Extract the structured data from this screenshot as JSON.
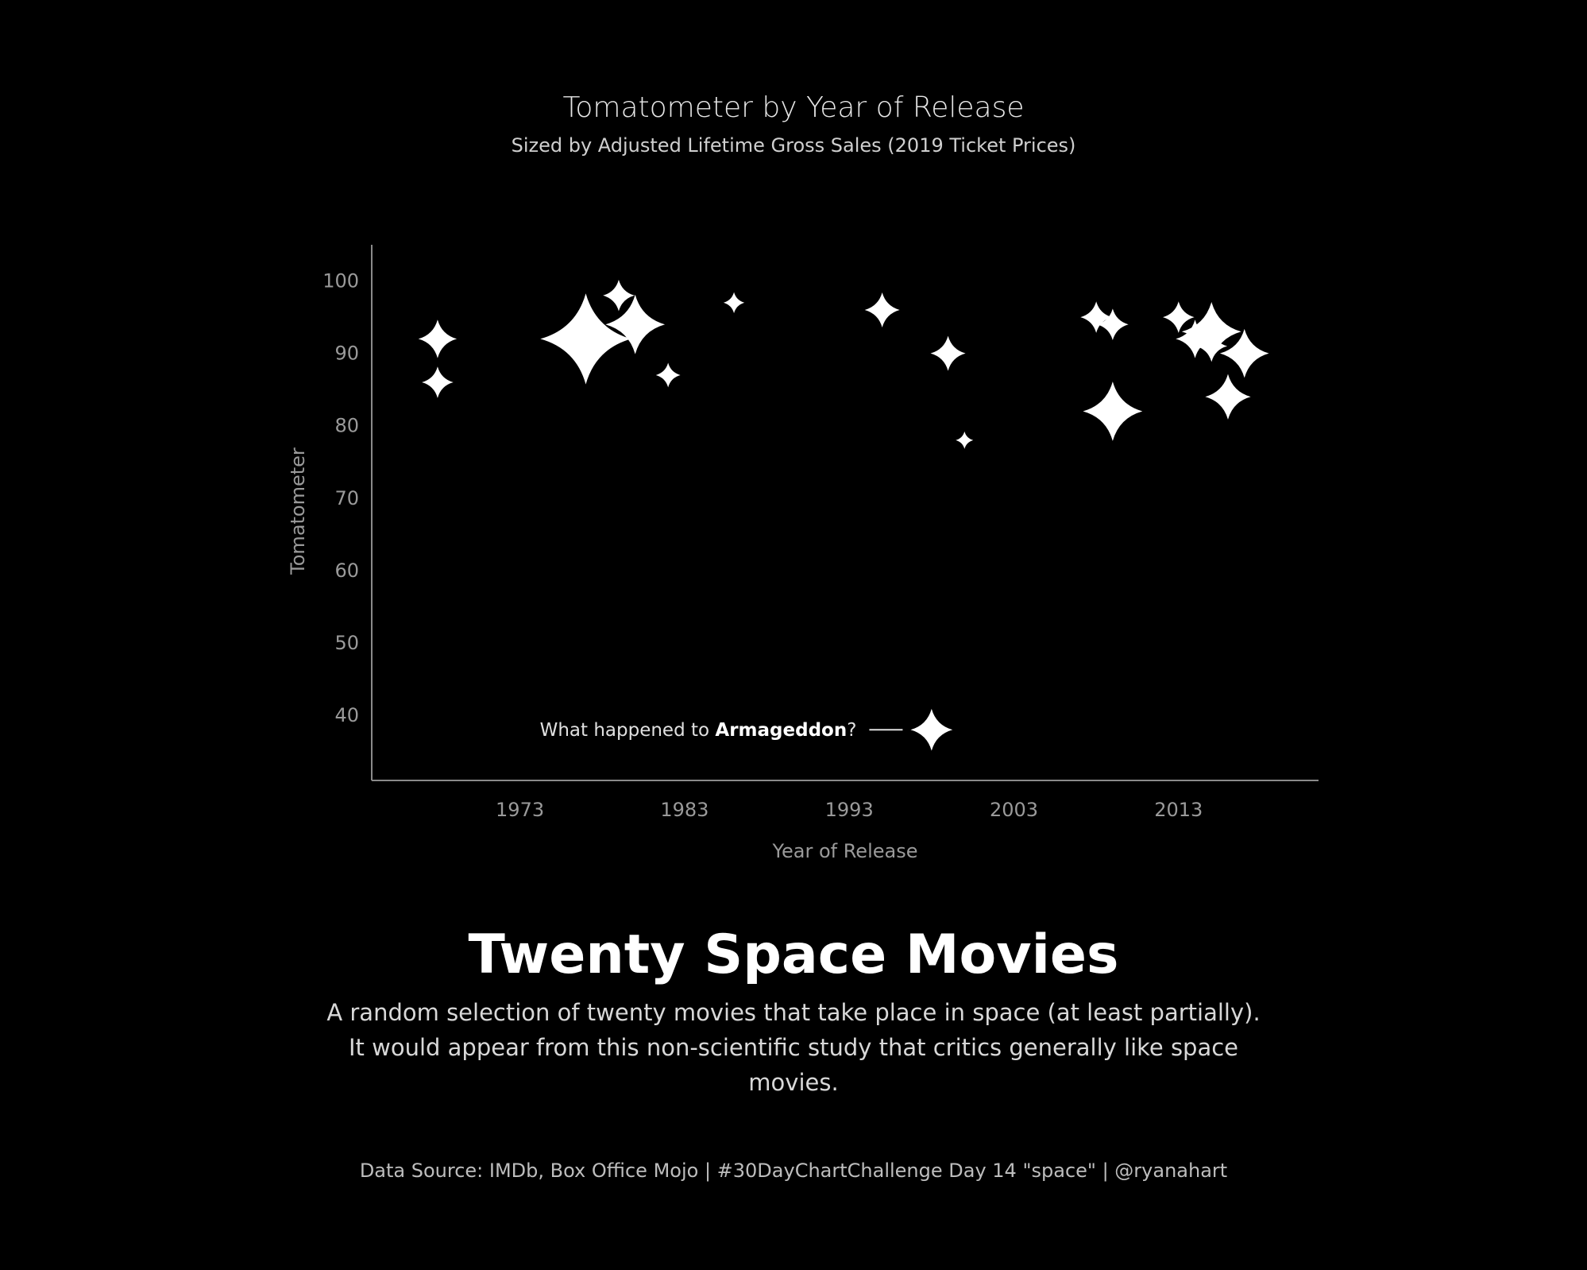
{
  "chart_data": {
    "type": "scatter",
    "title": "Tomatometer by Year of Release",
    "subtitle": "Sized by Adjusted Lifetime Gross Sales (2019 Ticket Prices)",
    "xlabel": "Year of Release",
    "ylabel": "Tomatometer",
    "xlim": [
      1964,
      2021.5
    ],
    "ylim": [
      31,
      105
    ],
    "xticks": [
      "1973",
      "1983",
      "1993",
      "2003",
      "2013"
    ],
    "yticks": [
      "40",
      "50",
      "60",
      "70",
      "80",
      "90",
      "100"
    ],
    "marker": "four-point star",
    "size_measure": "Adjusted Lifetime Gross Sales (2019 Ticket Prices)",
    "points": [
      {
        "x": 1968,
        "y": 92,
        "size": 1.1
      },
      {
        "x": 1968,
        "y": 86,
        "size": 0.9
      },
      {
        "x": 1977,
        "y": 92,
        "size": 2.6
      },
      {
        "x": 1979,
        "y": 98,
        "size": 0.9
      },
      {
        "x": 1980,
        "y": 94,
        "size": 1.7
      },
      {
        "x": 1982,
        "y": 87,
        "size": 0.7
      },
      {
        "x": 1986,
        "y": 97,
        "size": 0.6
      },
      {
        "x": 1995,
        "y": 96,
        "size": 1.0
      },
      {
        "x": 1999,
        "y": 90,
        "size": 1.0
      },
      {
        "x": 2000,
        "y": 78,
        "size": 0.5
      },
      {
        "x": 2008,
        "y": 95,
        "size": 0.9
      },
      {
        "x": 2009,
        "y": 94,
        "size": 0.9
      },
      {
        "x": 2009,
        "y": 82,
        "size": 1.7
      },
      {
        "x": 2013,
        "y": 95,
        "size": 0.9
      },
      {
        "x": 2014,
        "y": 92,
        "size": 1.1
      },
      {
        "x": 2015,
        "y": 93,
        "size": 1.7
      },
      {
        "x": 2015,
        "y": 91,
        "size": 0.9
      },
      {
        "x": 2016,
        "y": 84,
        "size": 1.3
      },
      {
        "x": 2017,
        "y": 90,
        "size": 1.4
      },
      {
        "x": 1998,
        "y": 38,
        "size": 1.2
      }
    ],
    "annotation": {
      "prefix": "What happened to ",
      "bold": "Armageddon",
      "suffix": "?",
      "point_index": 19
    }
  },
  "headline": "Twenty Space Movies",
  "description": "A random selection of twenty movies that take place in space (at least partially).  It would appear from this non-scientific study that critics generally like space movies.",
  "footer": "Data Source: IMDb, Box Office Mojo | #30DayChartChallenge Day 14 \"space\" | @ryanahart",
  "colors": {
    "background": "#000000",
    "marker": "#ffffff",
    "axis": "#8a8a8a",
    "text_muted": "#9a9a9a"
  }
}
